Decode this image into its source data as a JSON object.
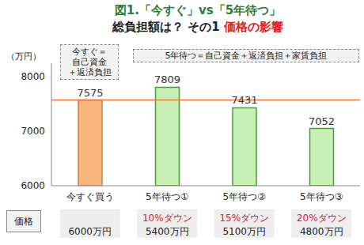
{
  "chart_data": {
    "type": "bar",
    "title": "図1.「今すぐ」vs「5年待つ」",
    "subtitle": "総負担額は？ その1",
    "subtitle_highlight": "価格の影響",
    "y_label": "（万円）",
    "categories": [
      "今すぐ買う",
      "5年待つ①",
      "5年待つ②",
      "5年待つ③"
    ],
    "values": [
      7575,
      7809,
      7431,
      7052
    ],
    "colors": [
      "#f7b47c",
      "#c8f0b4",
      "#c8f0b4",
      "#c8f0b4"
    ],
    "ylim": [
      6000,
      8250
    ],
    "yticks": [
      6000,
      7000,
      8000
    ],
    "data_labels": true,
    "reference_line": 7575,
    "annotations": [
      [
        "今すぐ＝",
        "自己資金",
        "＋返済負担"
      ],
      [
        "5年待つ＝自己資金＋返済負担＋家賃負担"
      ]
    ],
    "price_header": "価格",
    "price_changes": [
      null,
      "10%ダウン",
      "15%ダウン",
      "20%ダウン"
    ],
    "prices": [
      "6000万円",
      "5400万円",
      "5100万円",
      "4800万円"
    ]
  }
}
